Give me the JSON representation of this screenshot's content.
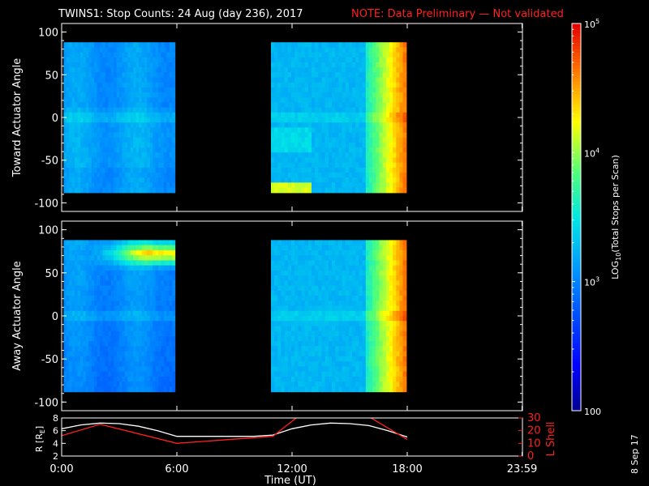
{
  "header": {
    "title": "TWINS1: Stop Counts: 24 Aug (day 236), 2017",
    "note": "NOTE: Data Preliminary — Not validated"
  },
  "colorbar": {
    "label": "LOG",
    "label_sub": "10",
    "label_rest": "(Total Stops per Scan)",
    "ticks": [
      {
        "value": 100,
        "label": "100"
      },
      {
        "value": 1000,
        "label": "10",
        "sup": "3"
      },
      {
        "value": 10000,
        "label": "10",
        "sup": "4"
      },
      {
        "value": 100000,
        "label": "10",
        "sup": "5"
      }
    ],
    "range": [
      100,
      100000
    ],
    "scale": "log"
  },
  "panels": {
    "top": {
      "ylabel": "Toward Actuator Angle"
    },
    "bottom": {
      "ylabel": "Away Actuator Angle"
    },
    "orbit": {
      "ylabel_left": "R [R",
      "ylabel_left_sub": "E",
      "ylabel_left_end": "]",
      "ylabel_right": "L Shell"
    }
  },
  "xaxis": {
    "label": "Time (UT)"
  },
  "footer": {
    "date_stamp": "8 Sep 17"
  },
  "colors": {
    "note": "#ff2020",
    "lshell": "#ff2020",
    "radius": "#ffffff"
  },
  "chart_data": [
    {
      "type": "heatmap",
      "name": "toward",
      "ylabel": "Toward Actuator Angle",
      "ylim": [
        -110,
        110
      ],
      "yticks": [
        -100,
        -50,
        0,
        50,
        100
      ],
      "xlim": [
        0,
        24
      ],
      "xticks": [
        {
          "v": 0,
          "l": "0:00"
        },
        {
          "v": 6,
          "l": "6:00"
        },
        {
          "v": 12,
          "l": "12:00"
        },
        {
          "v": 18,
          "l": "18:00"
        },
        {
          "v": 23.98,
          "l": "23:59"
        }
      ],
      "data_blocks": [
        {
          "t0": 0.1,
          "t1": 5.9,
          "a0": -88,
          "a1": 88
        },
        {
          "t0": 10.9,
          "t1": 17.95,
          "a0": -88,
          "a1": 88
        }
      ],
      "zrange_log10": [
        2,
        5
      ]
    },
    {
      "type": "heatmap",
      "name": "away",
      "ylabel": "Away Actuator Angle",
      "ylim": [
        -110,
        110
      ],
      "yticks": [
        -100,
        -50,
        0,
        50,
        100
      ],
      "xlim": [
        0,
        24
      ],
      "xticks": [
        {
          "v": 0,
          "l": "0:00"
        },
        {
          "v": 6,
          "l": "6:00"
        },
        {
          "v": 12,
          "l": "12:00"
        },
        {
          "v": 18,
          "l": "18:00"
        },
        {
          "v": 23.98,
          "l": "23:59"
        }
      ],
      "data_blocks": [
        {
          "t0": 0.1,
          "t1": 5.9,
          "a0": -88,
          "a1": 88
        },
        {
          "t0": 10.9,
          "t1": 17.95,
          "a0": -88,
          "a1": 88
        }
      ],
      "zrange_log10": [
        2,
        5
      ]
    },
    {
      "type": "line",
      "name": "orbit",
      "xlim": [
        0,
        24
      ],
      "ylim_left": [
        2,
        8
      ],
      "yticks_left": [
        2,
        4,
        6,
        8
      ],
      "ylim_right": [
        0,
        30
      ],
      "yticks_right": [
        0,
        10,
        20,
        30
      ],
      "xticks": [
        {
          "v": 0,
          "l": "0:00"
        },
        {
          "v": 6,
          "l": "6:00"
        },
        {
          "v": 12,
          "l": "12:00"
        },
        {
          "v": 18,
          "l": "18:00"
        },
        {
          "v": 23.98,
          "l": "23:59"
        }
      ],
      "series": [
        {
          "name": "R [RE]",
          "axis": "left",
          "color": "#ffffff",
          "x": [
            0,
            1,
            2,
            3,
            4,
            5,
            6,
            7,
            8,
            9,
            10,
            11,
            12,
            13,
            14,
            15,
            16,
            17,
            18
          ],
          "y": [
            6.3,
            6.9,
            7.2,
            7.1,
            6.7,
            6.0,
            5.1,
            5.1,
            5.1,
            5.1,
            5.1,
            5.3,
            6.3,
            6.9,
            7.2,
            7.1,
            6.8,
            6.0,
            5.0
          ]
        },
        {
          "name": "L Shell",
          "axis": "right",
          "color": "#ff2020",
          "x": [
            0,
            2,
            6,
            11,
            12.3,
            16,
            18
          ],
          "y": [
            16,
            25,
            10,
            15.5,
            31,
            31,
            13
          ]
        }
      ]
    }
  ]
}
